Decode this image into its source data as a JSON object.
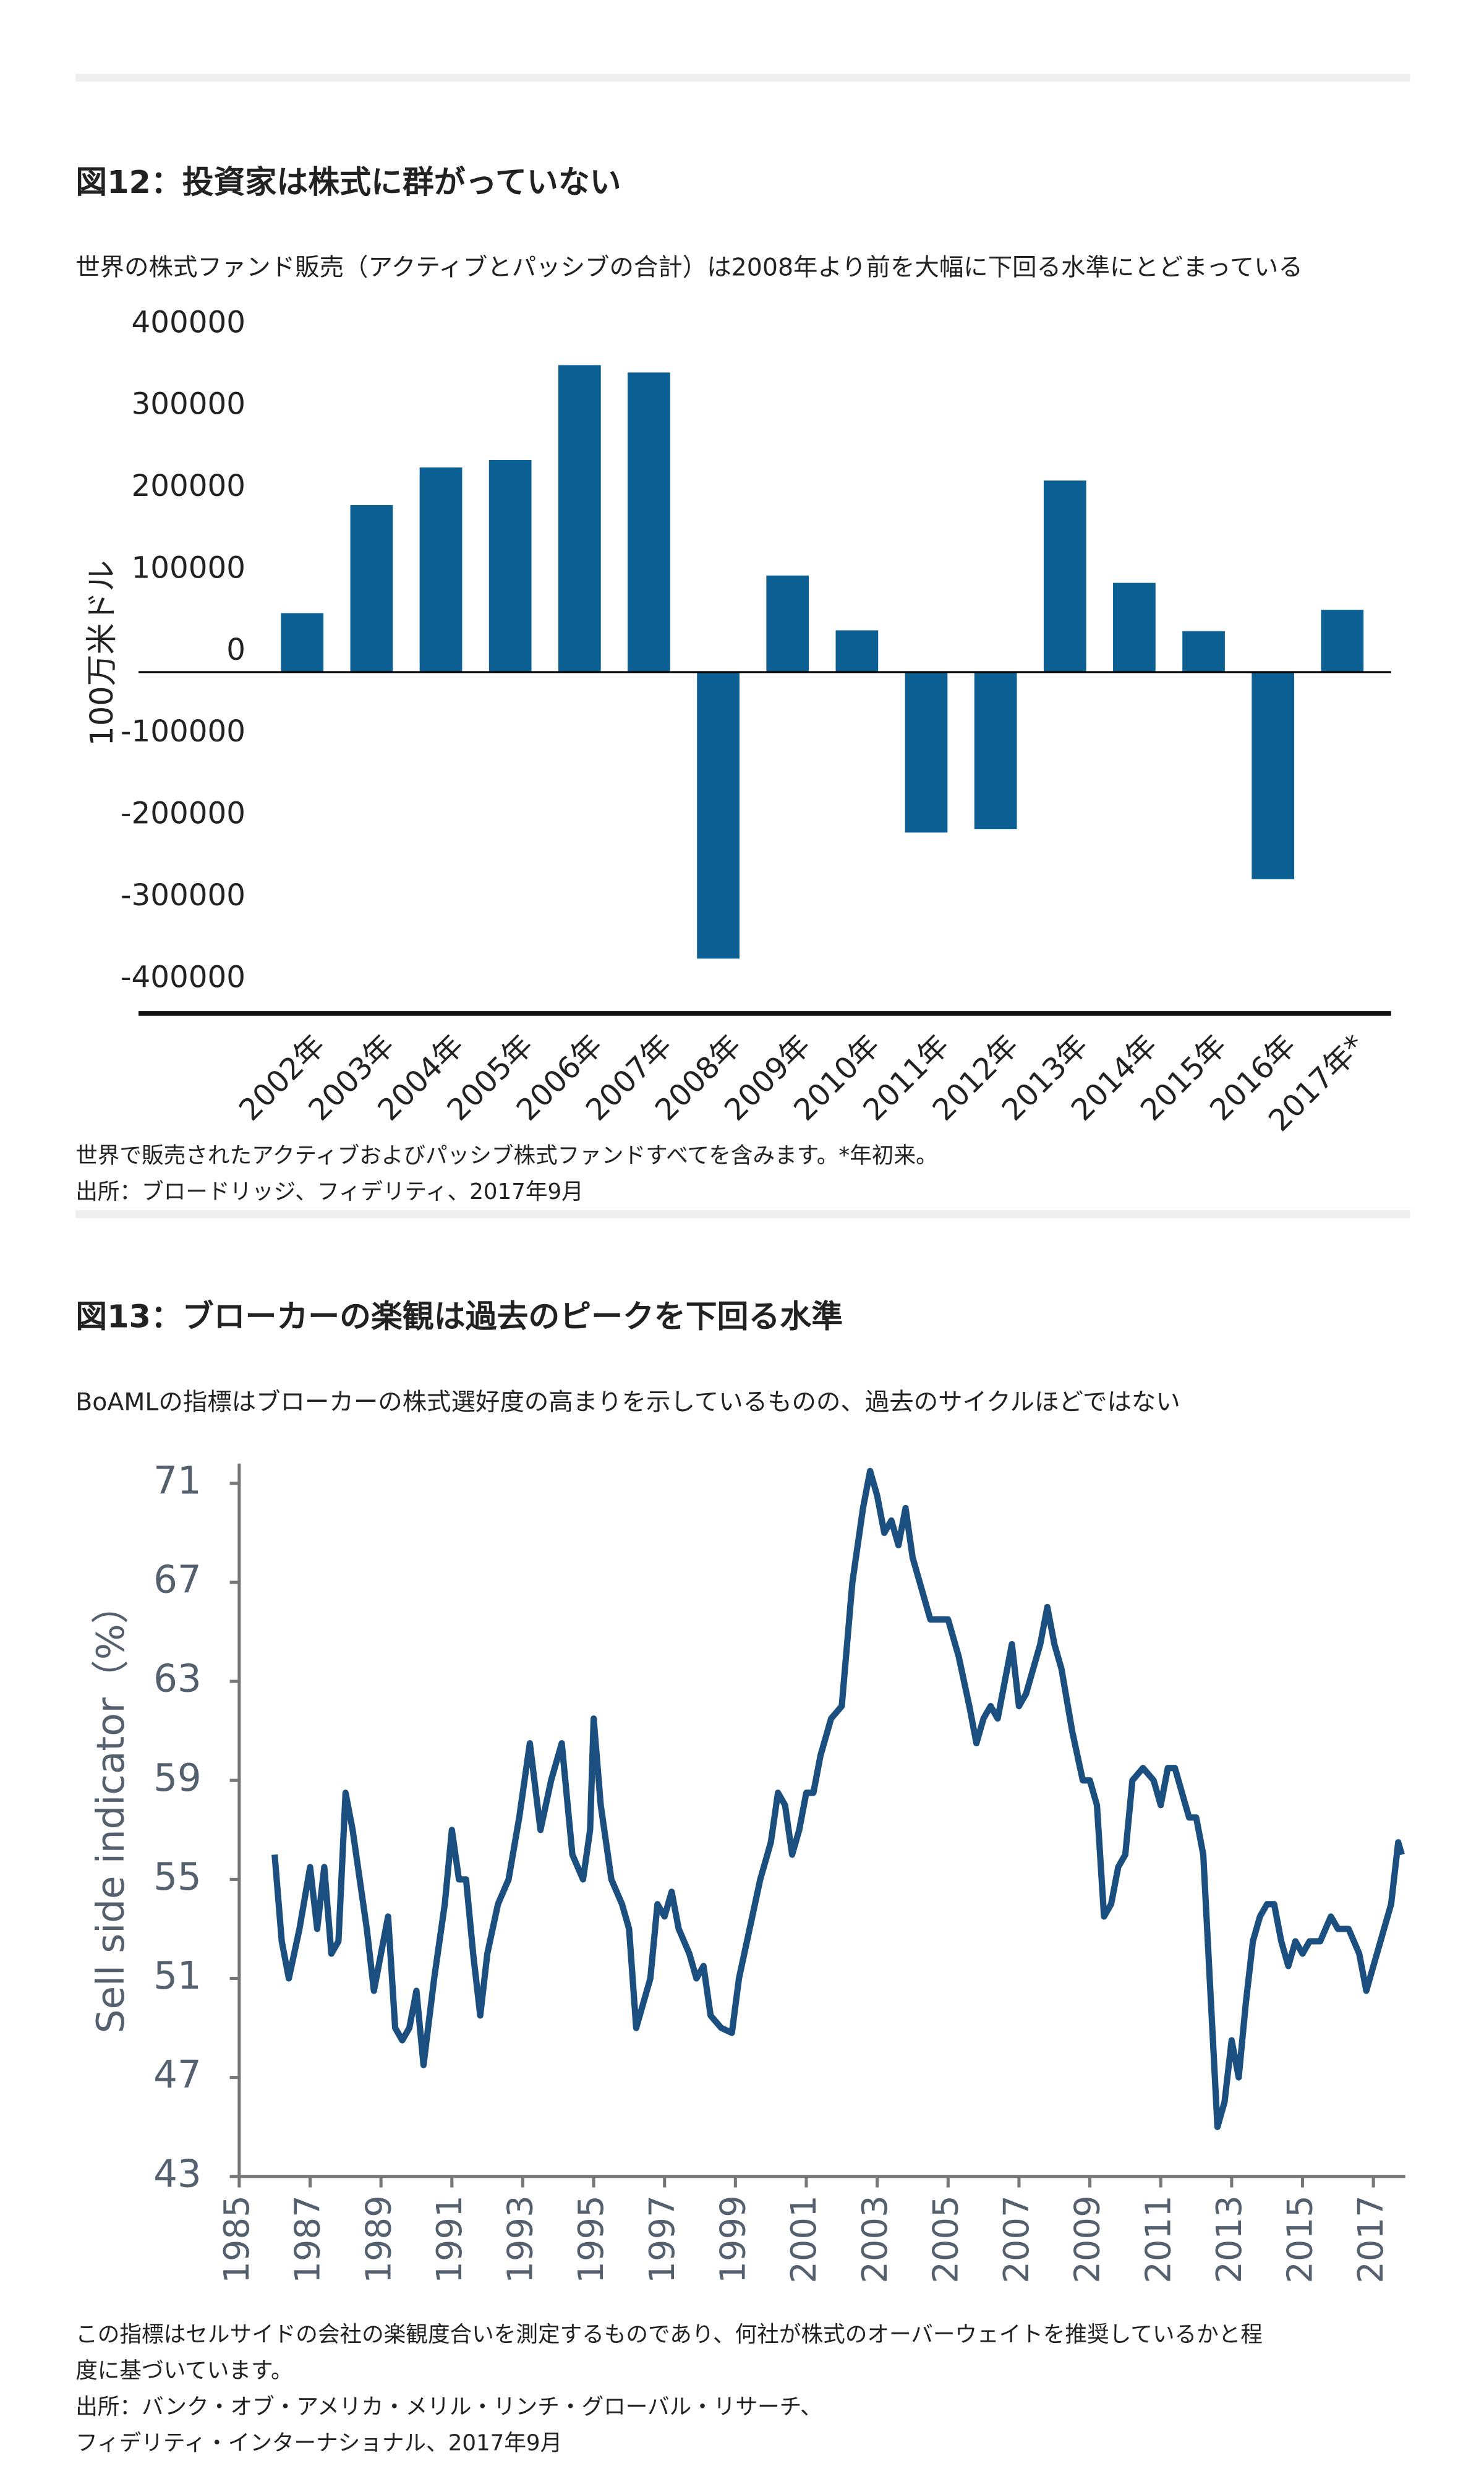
{
  "chart_data": [
    {
      "type": "bar",
      "title": "図12：投資家は株式に群がっていない",
      "subtitle": "世界の株式ファンド販売（アクティブとパッシブの合計）は2008年より前を大幅に下回る水準にとどまっている",
      "y_label": "100万米ドル",
      "categories": [
        "2002年",
        "2003年",
        "2004年",
        "2005年",
        "2006年",
        "2007年",
        "2008年",
        "2009年",
        "2010年",
        "2011年",
        "2012年",
        "2013年",
        "2014年",
        "2015年",
        "2016年",
        "2017年*"
      ],
      "values": [
        72000,
        204000,
        250000,
        259000,
        375000,
        366000,
        -350000,
        118000,
        51000,
        -196000,
        -192000,
        234000,
        109000,
        50000,
        -253000,
        76000
      ],
      "color": "#0b5f93",
      "ylim": [
        -417000,
        425000
      ],
      "yticks": [
        400000,
        300000,
        200000,
        100000,
        0,
        -100000,
        -200000,
        -300000,
        -400000
      ],
      "grid": false,
      "note_lines": [
        "世界で販売されたアクティブおよびパッシブ株式ファンドすべてを含みます。*年初来。",
        "出所：ブロードリッジ、フィデリティ、2017年9月"
      ]
    },
    {
      "type": "line",
      "title": "図13：ブローカーの楽観は過去のピークを下回る水準",
      "subtitle": "BoAMLの指標はブローカーの株式選好度の高まりを示しているものの、過去のサイクルほどではない",
      "y_label": "Sell side indicator（%）",
      "x": [
        1986.0,
        1986.2,
        1986.4,
        1986.7,
        1987.0,
        1987.2,
        1987.4,
        1987.6,
        1987.8,
        1988.0,
        1988.2,
        1988.4,
        1988.6,
        1988.8,
        1989.0,
        1989.2,
        1989.4,
        1989.6,
        1989.8,
        1990.0,
        1990.2,
        1990.5,
        1990.8,
        1991.0,
        1991.2,
        1991.4,
        1991.6,
        1991.8,
        1992.0,
        1992.3,
        1992.6,
        1992.9,
        1993.2,
        1993.5,
        1993.8,
        1994.1,
        1994.4,
        1994.7,
        1994.9,
        1995.0,
        1995.2,
        1995.5,
        1995.8,
        1996.0,
        1996.2,
        1996.4,
        1996.6,
        1996.8,
        1997.0,
        1997.2,
        1997.4,
        1997.7,
        1997.9,
        1998.1,
        1998.3,
        1998.6,
        1998.9,
        1999.1,
        1999.4,
        1999.7,
        2000.0,
        2000.2,
        2000.4,
        2000.6,
        2000.8,
        2001.0,
        2001.2,
        2001.4,
        2001.7,
        2002.0,
        2002.3,
        2002.6,
        2002.8,
        2003.0,
        2003.2,
        2003.4,
        2003.6,
        2003.8,
        2004.0,
        2004.2,
        2004.5,
        2004.8,
        2005.0,
        2005.3,
        2005.6,
        2005.8,
        2006.0,
        2006.2,
        2006.4,
        2006.6,
        2006.8,
        2007.0,
        2007.2,
        2007.4,
        2007.6,
        2007.8,
        2008.0,
        2008.2,
        2008.5,
        2008.8,
        2009.0,
        2009.2,
        2009.4,
        2009.6,
        2009.8,
        2010.0,
        2010.2,
        2010.5,
        2010.8,
        2011.0,
        2011.2,
        2011.4,
        2011.6,
        2011.8,
        2012.0,
        2012.2,
        2012.4,
        2012.6,
        2012.8,
        2013.0,
        2013.2,
        2013.4,
        2013.6,
        2013.8,
        2014.0,
        2014.2,
        2014.4,
        2014.6,
        2014.8,
        2015.0,
        2015.2,
        2015.5,
        2015.8,
        2016.0,
        2016.3,
        2016.6,
        2016.8,
        2017.0,
        2017.3,
        2017.5,
        2017.7,
        2017.8
      ],
      "values": [
        56,
        52.5,
        51,
        53,
        55.5,
        53,
        55.5,
        52,
        52.5,
        58.5,
        57,
        55,
        53,
        50.5,
        52,
        53.5,
        49,
        48.5,
        49,
        50.5,
        47.5,
        51,
        54,
        57,
        55,
        55,
        52,
        49.5,
        52,
        54,
        55,
        57.5,
        60.5,
        57,
        59,
        60.5,
        56,
        55,
        57,
        61.5,
        58,
        55,
        54,
        53,
        49,
        50,
        51,
        54,
        53.5,
        54.5,
        53,
        52,
        51,
        51.5,
        49.5,
        49,
        48.8,
        51,
        53,
        55,
        56.5,
        58.5,
        58,
        56,
        57,
        58.5,
        58.5,
        60,
        61.5,
        62,
        67,
        70,
        71.5,
        70.5,
        69,
        69.5,
        68.5,
        70,
        68,
        67,
        65.5,
        65.5,
        65.5,
        64,
        62,
        60.5,
        61.5,
        62,
        61.5,
        63,
        64.5,
        62,
        62.5,
        63.5,
        64.5,
        66,
        64.5,
        63.5,
        61,
        59,
        59,
        58,
        53.5,
        54,
        55.5,
        56,
        59,
        59.5,
        59,
        58,
        59.5,
        59.5,
        58.5,
        57.5,
        57.5,
        56,
        50.5,
        45,
        46,
        48.5,
        47,
        50,
        52.5,
        53.5,
        54,
        54,
        52.5,
        51.5,
        52.5,
        52,
        52.5,
        52.5,
        53.5,
        53,
        53,
        52,
        50.5,
        51.5,
        53,
        54,
        56.5,
        56
      ],
      "color": "#1b4f7f",
      "xlim": [
        1985,
        2017.9
      ],
      "xticks": [
        1985,
        1987,
        1989,
        1991,
        1993,
        1995,
        1997,
        1999,
        2001,
        2003,
        2005,
        2007,
        2009,
        2011,
        2013,
        2015,
        2017
      ],
      "ylim": [
        43,
        71.8
      ],
      "yticks": [
        43,
        47,
        51,
        55,
        59,
        63,
        67,
        71
      ],
      "note_lines": [
        "この指標はセルサイドの会社の楽観度合いを測定するものであり、何社が株式のオーバーウェイトを推奨しているかと程",
        "度に基づいています。",
        "出所：バンク・オブ・アメリカ・メリル・リンチ・グローバル・リサーチ、",
        "フィデリティ・インターナショナル、2017年9月"
      ]
    }
  ]
}
